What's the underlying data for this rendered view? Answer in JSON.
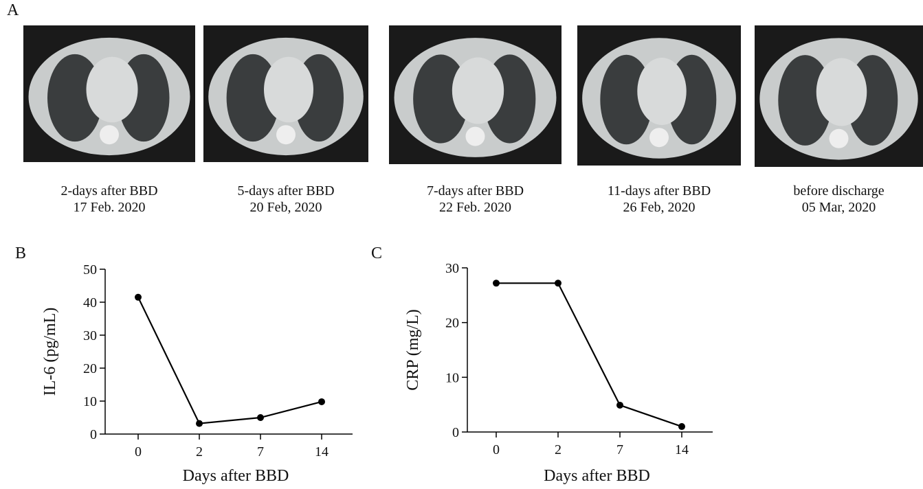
{
  "panel_labels": [
    "A",
    "B",
    "C"
  ],
  "ct_scans": [
    {
      "line1": "2-days after BBD",
      "line2": "17 Feb. 2020"
    },
    {
      "line1": "5-days after BBD",
      "line2": "20 Feb, 2020"
    },
    {
      "line1": "7-days after BBD",
      "line2": "22 Feb. 2020"
    },
    {
      "line1": "11-days after BBD",
      "line2": "26 Feb, 2020"
    },
    {
      "line1": "before discharge",
      "line2": "05 Mar, 2020"
    }
  ],
  "chart_data": [
    {
      "type": "line",
      "xlabel": "Days after BBD",
      "ylabel": "IL-6 (pg/mL)",
      "categories": [
        "0",
        "2",
        "7",
        "14"
      ],
      "values": [
        41.5,
        3.2,
        5,
        9.8
      ],
      "color": "#000000",
      "ylim": [
        0,
        50
      ],
      "yticks": [
        0,
        10,
        20,
        30,
        40,
        50
      ]
    },
    {
      "type": "line",
      "xlabel": "Days after BBD",
      "ylabel": "CRP (mg/L)",
      "categories": [
        "0",
        "2",
        "7",
        "14"
      ],
      "values": [
        27.2,
        27.2,
        4.9,
        1.0
      ],
      "color": "#000000",
      "ylim": [
        0,
        30
      ],
      "yticks": [
        0,
        10,
        20,
        30
      ]
    }
  ]
}
